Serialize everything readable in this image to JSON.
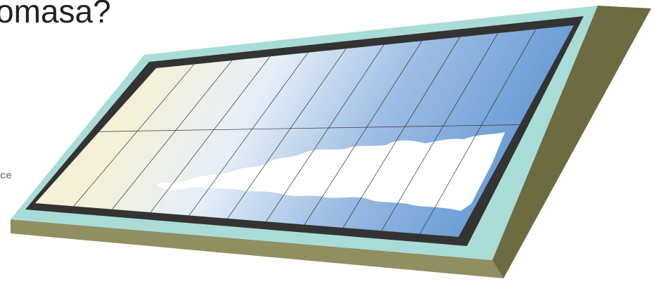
{
  "texts": {
    "heading": "omasa?",
    "side_label": "ce"
  }
}
